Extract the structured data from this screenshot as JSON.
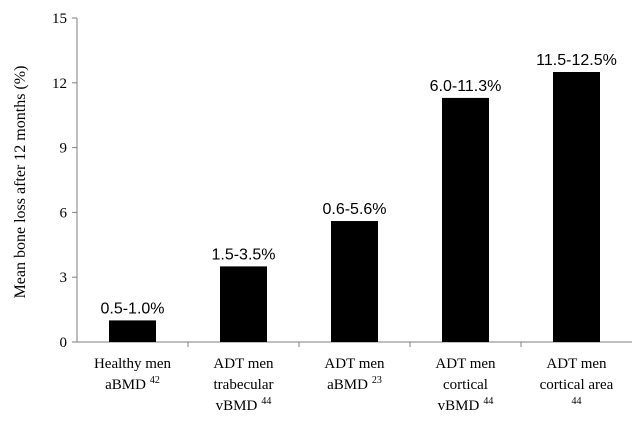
{
  "chart_data": {
    "type": "bar",
    "title": "",
    "xlabel": "",
    "ylabel": "Mean bone loss after 12 months (%)",
    "ylim": [
      0,
      15
    ],
    "yticks": [
      0,
      3,
      6,
      9,
      12,
      15
    ],
    "grid": false,
    "legend": "none",
    "bar_color": "#000000",
    "categories": [
      {
        "lines": [
          {
            "text": "Healthy men"
          },
          {
            "text": "aBMD",
            "sup": "42"
          }
        ]
      },
      {
        "lines": [
          {
            "text": "ADT men"
          },
          {
            "text": "trabecular"
          },
          {
            "text": "vBMD",
            "sup": "44"
          }
        ]
      },
      {
        "lines": [
          {
            "text": "ADT men"
          },
          {
            "text": "aBMD",
            "sup": "23"
          }
        ]
      },
      {
        "lines": [
          {
            "text": "ADT men"
          },
          {
            "text": "cortical"
          },
          {
            "text": "vBMD",
            "sup": "44"
          }
        ]
      },
      {
        "lines": [
          {
            "text": "ADT men"
          },
          {
            "text": "cortical area"
          },
          {
            "text": "",
            "sup": "44"
          }
        ]
      }
    ],
    "values": [
      1.0,
      3.5,
      5.6,
      11.3,
      12.5
    ],
    "data_labels": [
      "0.5-1.0%",
      "1.5-3.5%",
      "0.6-5.6%",
      "6.0-11.3%",
      "11.5-12.5%"
    ]
  }
}
